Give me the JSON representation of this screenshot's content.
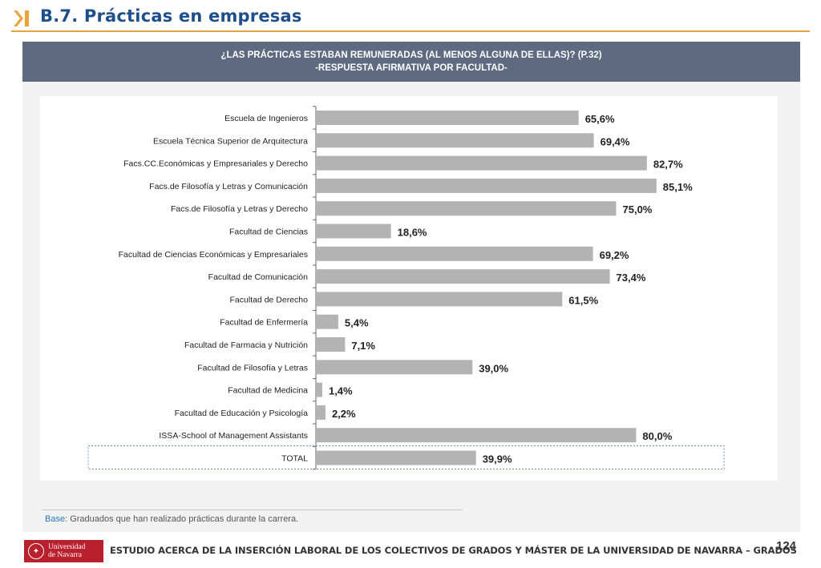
{
  "header": {
    "title": "B.7. Prácticas en empresas",
    "accent_color": "#e8a33d",
    "logo_icon": "chevron-bar-icon"
  },
  "banner": {
    "line1": "¿LAS PRÁCTICAS ESTABAN REMUNERADAS (AL MENOS ALGUNA DE ELLAS)? (P.32)",
    "line2": "-RESPUESTA AFIRMATIVA POR FACULTAD-"
  },
  "chart_data": {
    "type": "bar",
    "orientation": "horizontal",
    "bar_color": "#b3b3b3",
    "categories": [
      "Escuela de Ingenieros",
      "Escuela Técnica Superior de Arquitectura",
      "Facs.CC.Económicas y Empresariales y Derecho",
      "Facs.de Filosofía y Letras y Comunicación",
      "Facs.de Filosofía y Letras y Derecho",
      "Facultad de Ciencias",
      "Facultad de Ciencias Económicas y Empresariales",
      "Facultad de Comunicación",
      "Facultad de Derecho",
      "Facultad de Enfermería",
      "Facultad de Farmacia y Nutrición",
      "Facultad de Filosofía y Letras",
      "Facultad de Medicina",
      "Facultad de Educación y Psicología",
      "ISSA-School of Management Assistants",
      "TOTAL"
    ],
    "values": [
      65.6,
      69.4,
      82.7,
      85.1,
      75.0,
      18.6,
      69.2,
      73.4,
      61.5,
      5.4,
      7.1,
      39.0,
      1.4,
      2.2,
      80.0,
      39.9
    ],
    "value_labels": [
      "65,6%",
      "69,4%",
      "82,7%",
      "85,1%",
      "75,0%",
      "18,6%",
      "69,2%",
      "73,4%",
      "61,5%",
      "5,4%",
      "7,1%",
      "39,0%",
      "1,4%",
      "2,2%",
      "80,0%",
      "39,9%"
    ],
    "xlim": [
      0,
      100
    ],
    "highlight_category": "TOTAL",
    "grid": false,
    "legend": "none"
  },
  "base_note": {
    "label": "Base:",
    "text": " Graduados que han realizado prácticas durante la carrera."
  },
  "footer": {
    "logo_text_1": "Universidad",
    "logo_text_2": "de Navarra",
    "brand_color": "#b9202e",
    "study_title": "ESTUDIO ACERCA DE LA INSERCIÓN LABORAL DE LOS COLECTIVOS DE GRADOS Y MÁSTER DE LA UNIVERSIDAD DE NAVARRA – GRADOS",
    "page_number": "124"
  }
}
